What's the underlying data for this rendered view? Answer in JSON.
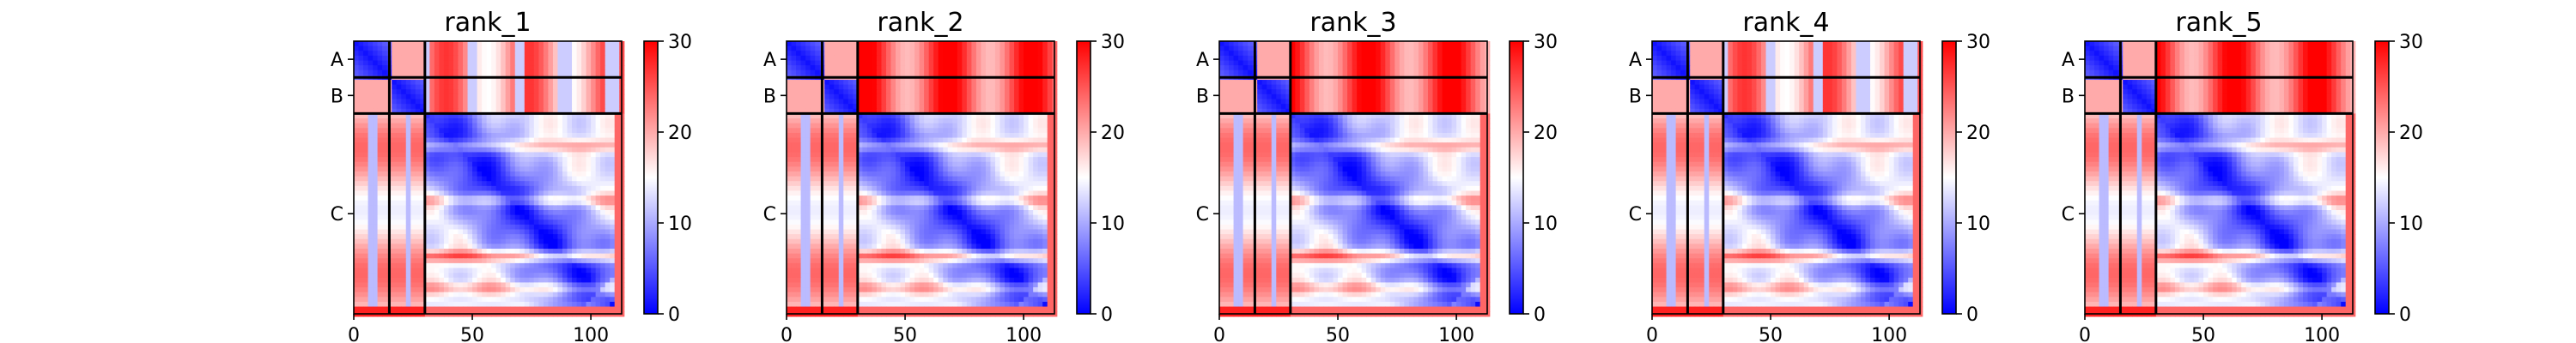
{
  "chart_data": [
    {
      "type": "heatmap",
      "title": "rank_1",
      "chains": [
        {
          "name": "A",
          "start": 0,
          "end": 15
        },
        {
          "name": "B",
          "start": 15,
          "end": 30
        },
        {
          "name": "C",
          "start": 30,
          "end": 113
        }
      ],
      "xlim": [
        0,
        113
      ],
      "ylim": [
        0,
        113
      ],
      "xticks": [
        0,
        50,
        100
      ],
      "colorbar": {
        "min": 0,
        "max": 30,
        "ticks": [
          0,
          10,
          20,
          30
        ],
        "colormap": "bwr"
      },
      "banding": [
        0.15,
        0.42,
        0.7,
        0.86
      ],
      "pattern_variant": 1
    },
    {
      "type": "heatmap",
      "title": "rank_2",
      "chains": [
        {
          "name": "A",
          "start": 0,
          "end": 15
        },
        {
          "name": "B",
          "start": 15,
          "end": 30
        },
        {
          "name": "C",
          "start": 30,
          "end": 113
        }
      ],
      "xlim": [
        0,
        113
      ],
      "ylim": [
        0,
        113
      ],
      "xticks": [
        0,
        50,
        100
      ],
      "colorbar": {
        "min": 0,
        "max": 30,
        "ticks": [
          0,
          10,
          20,
          30
        ],
        "colormap": "bwr"
      },
      "banding": [
        0.15,
        0.42,
        0.7,
        0.86
      ],
      "pattern_variant": 2
    },
    {
      "type": "heatmap",
      "title": "rank_3",
      "chains": [
        {
          "name": "A",
          "start": 0,
          "end": 15
        },
        {
          "name": "B",
          "start": 15,
          "end": 30
        },
        {
          "name": "C",
          "start": 30,
          "end": 113
        }
      ],
      "xlim": [
        0,
        113
      ],
      "ylim": [
        0,
        113
      ],
      "xticks": [
        0,
        50,
        100
      ],
      "colorbar": {
        "min": 0,
        "max": 30,
        "ticks": [
          0,
          10,
          20,
          30
        ],
        "colormap": "bwr"
      },
      "banding": [
        0.15,
        0.42,
        0.7,
        0.86
      ],
      "pattern_variant": 3
    },
    {
      "type": "heatmap",
      "title": "rank_4",
      "chains": [
        {
          "name": "A",
          "start": 0,
          "end": 15
        },
        {
          "name": "B",
          "start": 15,
          "end": 30
        },
        {
          "name": "C",
          "start": 30,
          "end": 113
        }
      ],
      "xlim": [
        0,
        113
      ],
      "ylim": [
        0,
        113
      ],
      "xticks": [
        0,
        50,
        100
      ],
      "colorbar": {
        "min": 0,
        "max": 30,
        "ticks": [
          0,
          10,
          20,
          30
        ],
        "colormap": "bwr"
      },
      "banding": [
        0.15,
        0.42,
        0.7,
        0.86
      ],
      "pattern_variant": 1
    },
    {
      "type": "heatmap",
      "title": "rank_5",
      "chains": [
        {
          "name": "A",
          "start": 0,
          "end": 15
        },
        {
          "name": "B",
          "start": 15,
          "end": 30
        },
        {
          "name": "C",
          "start": 30,
          "end": 113
        }
      ],
      "xlim": [
        0,
        113
      ],
      "ylim": [
        0,
        113
      ],
      "xticks": [
        0,
        50,
        100
      ],
      "colorbar": {
        "min": 0,
        "max": 30,
        "ticks": [
          0,
          10,
          20,
          30
        ],
        "colormap": "bwr"
      },
      "banding": [
        0.15,
        0.42,
        0.7,
        0.86
      ],
      "pattern_variant": 3
    }
  ]
}
